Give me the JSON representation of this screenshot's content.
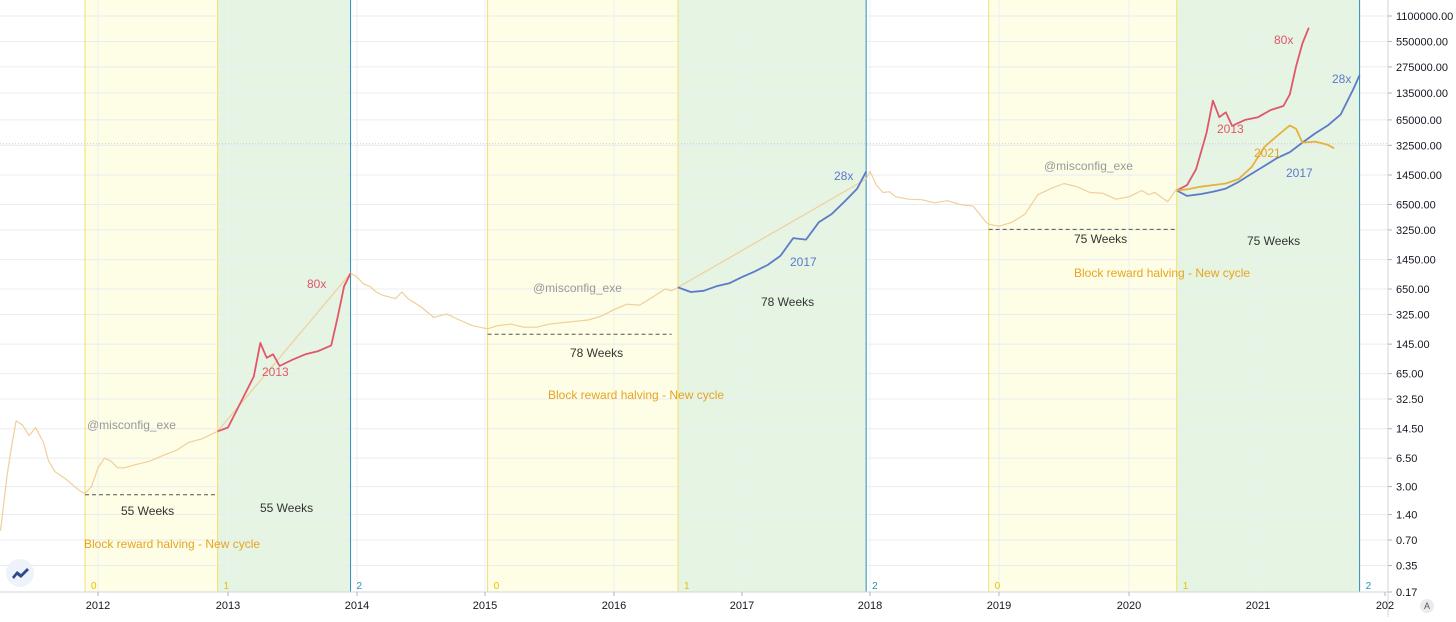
{
  "chart_data": {
    "type": "line",
    "title": "",
    "xlabel": "",
    "ylabel": "",
    "scale": "log",
    "x_range": [
      2011.25,
      2021.8
    ],
    "ylim": [
      0.17,
      1100000
    ],
    "y_ticks": [
      "1100000.00",
      "550000.00",
      "275000.00",
      "135000.00",
      "65000.00",
      "32500.00",
      "14500.00",
      "6500.00",
      "3250.00",
      "1450.00",
      "650.00",
      "325.00",
      "145.00",
      "65.00",
      "32.50",
      "14.50",
      "6.50",
      "3.00",
      "1.40",
      "0.70",
      "0.35",
      "0.17"
    ],
    "x_ticks": [
      "2012",
      "2013",
      "2014",
      "2015",
      "2016",
      "2017",
      "2018",
      "2019",
      "2020",
      "202"
    ],
    "x_tick_values": [
      2012,
      2013,
      2014,
      2015,
      2016,
      2017,
      2018,
      2019,
      2020,
      2021
    ],
    "x_tick_labels_extra": {
      "2021": "2021",
      "2022": "202"
    },
    "grid": true,
    "legend": "none",
    "colors": {
      "price_history": "#f0cf9a",
      "cycle_2013": "#e0576a",
      "cycle_2017": "#5b7bc8",
      "cycle_2021": "#e6b13e",
      "zone_yellow": "#fefde6",
      "zone_green": "#e6f4e3",
      "halving_line_yellow": "#f0e070",
      "cycle_end_line": "#2a8fb8",
      "weeks_text": "#333333",
      "halving_text": "#e6a520",
      "watermark": "#999999"
    },
    "zones": [
      {
        "type": "yellow",
        "start": 2011.9,
        "end": 2012.92
      },
      {
        "type": "green",
        "start": 2012.92,
        "end": 2013.95
      },
      {
        "type": "yellow",
        "start": 2015.02,
        "end": 2016.5
      },
      {
        "type": "green",
        "start": 2016.5,
        "end": 2017.97
      },
      {
        "type": "yellow",
        "start": 2018.92,
        "end": 2020.37
      },
      {
        "type": "green",
        "start": 2020.37,
        "end": 2021.8
      }
    ],
    "cycle_end_lines": [
      2013.95,
      2017.97,
      2021.8
    ],
    "zone_markers": [
      {
        "x": 2011.9,
        "label": "0",
        "color": "#e6c200"
      },
      {
        "x": 2012.92,
        "label": "1",
        "color": "#e6c200"
      },
      {
        "x": 2013.95,
        "label": "2",
        "color": "#2a8fb8"
      },
      {
        "x": 2015.02,
        "label": "0",
        "color": "#e6c200"
      },
      {
        "x": 2016.5,
        "label": "1",
        "color": "#e6c200"
      },
      {
        "x": 2017.97,
        "label": "2",
        "color": "#2a8fb8"
      },
      {
        "x": 2018.92,
        "label": "0",
        "color": "#e6c200"
      },
      {
        "x": 2020.37,
        "label": "1",
        "color": "#e6c200"
      },
      {
        "x": 2021.8,
        "label": "2",
        "color": "#2a8fb8"
      }
    ],
    "series": [
      {
        "id": "price_history",
        "x": [
          2011.25,
          2011.3,
          2011.33,
          2011.37,
          2011.42,
          2011.47,
          2011.52,
          2011.58,
          2011.62,
          2011.67,
          2011.72,
          2011.77,
          2011.82,
          2011.87,
          2011.9,
          2011.95,
          2012.0,
          2012.05,
          2012.1,
          2012.15,
          2012.2,
          2012.3,
          2012.4,
          2012.5,
          2012.6,
          2012.7,
          2012.8,
          2012.92,
          2013.95,
          2014.0,
          2014.05,
          2014.1,
          2014.15,
          2014.2,
          2014.3,
          2014.35,
          2014.4,
          2014.5,
          2014.6,
          2014.7,
          2014.8,
          2014.9,
          2015.02,
          2015.1,
          2015.2,
          2015.3,
          2015.4,
          2015.5,
          2015.6,
          2015.7,
          2015.8,
          2015.9,
          2016.0,
          2016.1,
          2016.2,
          2016.3,
          2016.4,
          2016.45,
          2016.5,
          2017.97,
          2018.0,
          2018.05,
          2018.1,
          2018.15,
          2018.2,
          2018.3,
          2018.4,
          2018.5,
          2018.6,
          2018.7,
          2018.8,
          2018.9,
          2018.92,
          2019.0,
          2019.1,
          2019.2,
          2019.3,
          2019.4,
          2019.5,
          2019.6,
          2019.7,
          2019.8,
          2019.9,
          2020.0,
          2020.1,
          2020.15,
          2020.2,
          2020.3,
          2020.37
        ],
        "y": [
          0.9,
          4,
          8,
          18,
          16,
          12,
          15,
          10,
          6,
          4.5,
          4,
          3.5,
          3,
          2.6,
          2.5,
          3,
          5,
          6.5,
          6,
          5,
          5,
          5.5,
          6,
          7,
          8,
          10,
          11,
          13.5,
          1000,
          900,
          750,
          700,
          600,
          550,
          500,
          600,
          500,
          400,
          300,
          330,
          280,
          240,
          220,
          240,
          250,
          230,
          230,
          250,
          260,
          270,
          280,
          310,
          370,
          430,
          420,
          520,
          650,
          620,
          680,
          13000,
          16000,
          11000,
          9000,
          9200,
          8000,
          7500,
          7400,
          6800,
          7200,
          6500,
          6200,
          4000,
          3800,
          3600,
          4000,
          5000,
          8500,
          10000,
          11500,
          10500,
          9000,
          8800,
          7500,
          8000,
          9500,
          8500,
          9000,
          7000,
          10000
        ],
        "color": "#f0cf9a"
      },
      {
        "id": "cycle_2013",
        "name": "2013",
        "x": [
          2020.37,
          2020.45,
          2020.52,
          2020.6,
          2020.65,
          2020.7,
          2020.75,
          2020.8,
          2020.85,
          2020.9,
          2021.0,
          2021.1,
          2021.2,
          2021.25,
          2021.3,
          2021.35,
          2021.4
        ],
        "y": [
          9500,
          11000,
          17000,
          45000,
          110000,
          70000,
          80000,
          55000,
          60000,
          65000,
          70000,
          85000,
          95000,
          130000,
          280000,
          520000,
          800000
        ],
        "color": "#e0576a"
      },
      {
        "id": "cycle_2017",
        "name": "2017",
        "x": [
          2020.37,
          2020.45,
          2020.55,
          2020.65,
          2020.75,
          2020.85,
          2020.95,
          2021.05,
          2021.15,
          2021.25,
          2021.35,
          2021.45,
          2021.55,
          2021.65,
          2021.75,
          2021.8
        ],
        "y": [
          9500,
          8200,
          8600,
          9200,
          10000,
          12000,
          15000,
          18500,
          23000,
          27000,
          35000,
          45000,
          56000,
          75000,
          150000,
          220000
        ],
        "color": "#5b7bc8"
      },
      {
        "id": "cycle_2021",
        "name": "2021",
        "x": [
          2020.37,
          2020.45,
          2020.55,
          2020.65,
          2020.75,
          2020.85,
          2020.95,
          2021.05,
          2021.15,
          2021.25,
          2021.3,
          2021.35,
          2021.45,
          2021.55,
          2021.6
        ],
        "y": [
          9500,
          9800,
          10500,
          11000,
          11500,
          13000,
          18000,
          31000,
          42000,
          56000,
          51000,
          35000,
          36000,
          33000,
          30000
        ],
        "color": "#e6b13e"
      }
    ],
    "annotations": {
      "watermark_1": "@misconfig_exe",
      "watermark_2": "@misconfig_exe",
      "watermark_3": "@misconfig_exe",
      "weeks_a1": "55 Weeks",
      "weeks_a2": "55 Weeks",
      "weeks_b1": "78 Weeks",
      "weeks_b2": "78 Weeks",
      "weeks_c1": "75 Weeks",
      "weeks_c2": "75 Weeks",
      "halving_1": "Block reward halving - New cycle",
      "halving_2": "Block reward halving - New cycle",
      "halving_3": "Block reward halving - New cycle",
      "c1_year": "2013",
      "c1_mult": "80x",
      "c2_year": "2017",
      "c2_mult": "28x",
      "c3_2013": "2013",
      "c3_2021": "2021",
      "c3_2017": "2017",
      "c3_mult80": "80x",
      "c3_mult28": "28x"
    },
    "back_overlays": [
      {
        "id": "c1_2013",
        "series_like": "cycle_2013",
        "x": [
          2012.92,
          2013.0,
          2013.1,
          2013.2,
          2013.25,
          2013.3,
          2013.35,
          2013.4,
          2013.5,
          2013.6,
          2013.7,
          2013.8,
          2013.85,
          2013.9,
          2013.95
        ],
        "y": [
          13.5,
          15,
          30,
          60,
          150,
          100,
          110,
          80,
          95,
          110,
          120,
          140,
          300,
          700,
          1000
        ]
      },
      {
        "id": "c2_2017",
        "series_like": "cycle_2017",
        "x": [
          2016.5,
          2016.6,
          2016.7,
          2016.8,
          2016.9,
          2017.0,
          2017.1,
          2017.2,
          2017.3,
          2017.4,
          2017.5,
          2017.6,
          2017.7,
          2017.8,
          2017.9,
          2017.97
        ],
        "y": [
          680,
          600,
          620,
          700,
          760,
          900,
          1050,
          1250,
          1600,
          2600,
          2500,
          4000,
          5000,
          7000,
          10000,
          16000
        ]
      }
    ],
    "dashed_baselines": [
      {
        "x_start": 2011.9,
        "x_end": 2012.92,
        "y": 2.4
      },
      {
        "x_start": 2015.02,
        "x_end": 2016.45,
        "y": 190
      },
      {
        "x_start": 2018.92,
        "x_end": 2020.37,
        "y": 3300
      }
    ],
    "dotted_level": 34000
  },
  "ui": {
    "corner_badge": "A"
  }
}
